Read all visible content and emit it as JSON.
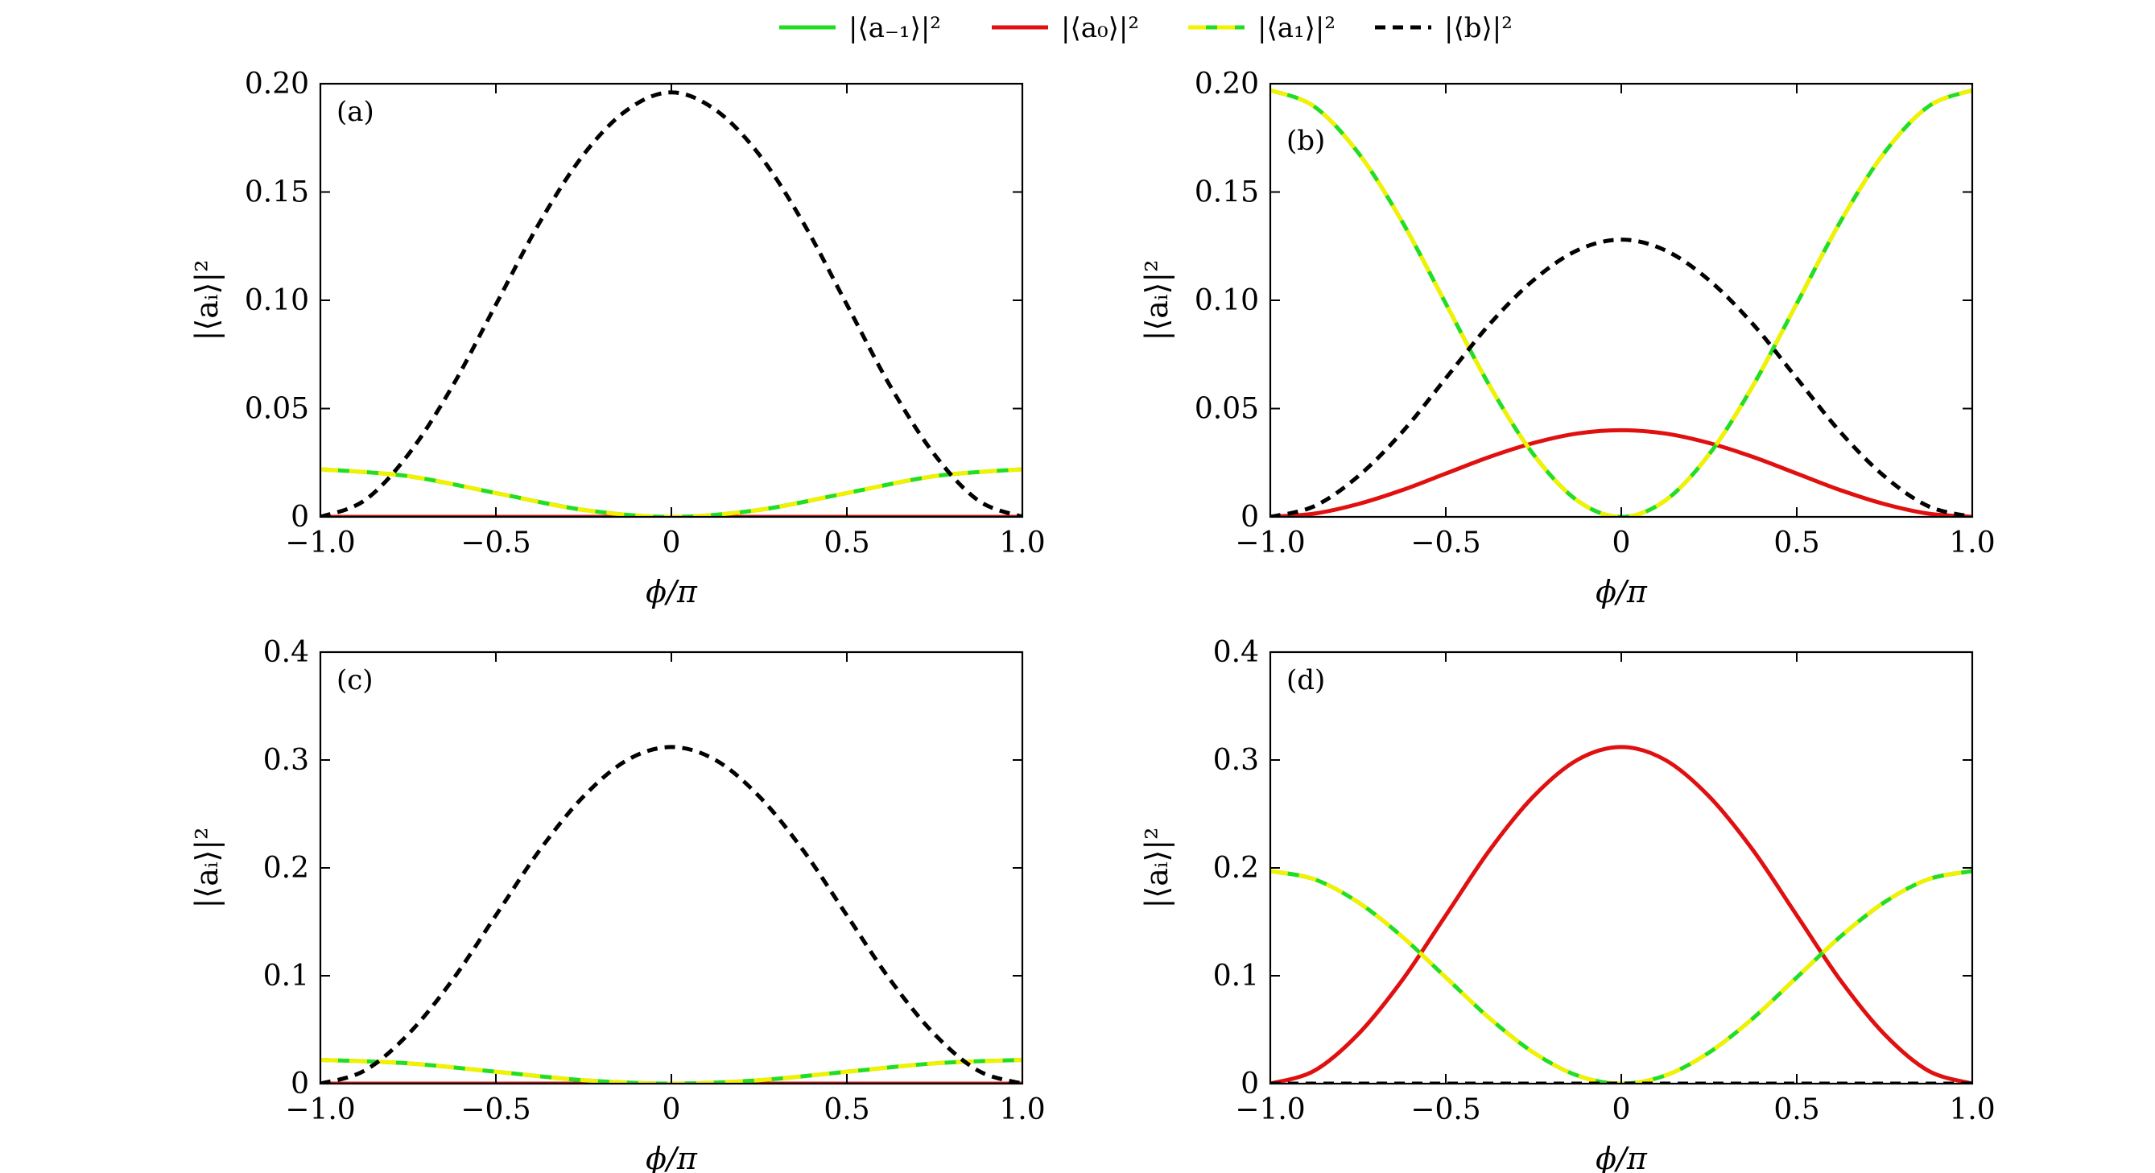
{
  "legend": {
    "entries": [
      {
        "key": "a_minus1",
        "label": "|⟨a₋₁⟩|²",
        "color": "#22dd22",
        "style": "solid"
      },
      {
        "key": "a0",
        "label": "|⟨a₀⟩|²",
        "color": "#e01010",
        "style": "solid"
      },
      {
        "key": "a1",
        "label": "|⟨a₁⟩|²",
        "color": "#f2f200",
        "style": "dashed"
      },
      {
        "key": "b",
        "label": "|⟨b⟩|²",
        "color": "#000000",
        "style": "dashed"
      }
    ]
  },
  "chart_data": [
    {
      "type": "line",
      "panel": "(a)",
      "xlabel": "ϕ/π",
      "ylabel": "|⟨aᵢ⟩|²",
      "xlim": [
        -1.0,
        1.0
      ],
      "ylim": [
        0,
        0.2
      ],
      "xticks": [
        -1.0,
        -0.5,
        0,
        0.5,
        1.0
      ],
      "xtick_labels": [
        "−1.0",
        "−0.5",
        "0",
        "0.5",
        "1.0"
      ],
      "yticks": [
        0,
        0.05,
        0.1,
        0.15,
        0.2
      ],
      "ytick_labels": [
        "0",
        "0.05",
        "0.10",
        "0.15",
        "0.20"
      ],
      "series": [
        {
          "name": "|⟨a₋₁⟩|²",
          "key": "a_minus1",
          "x": [
            -1.0,
            -0.75,
            -0.5,
            -0.25,
            0,
            0.25,
            0.5,
            0.75,
            1.0
          ],
          "values": [
            0.022,
            0.0188,
            0.011,
            0.0032,
            0,
            0.0032,
            0.011,
            0.0188,
            0.022
          ]
        },
        {
          "name": "|⟨a₀⟩|²",
          "key": "a0",
          "x": [
            -1.0,
            -0.5,
            0,
            0.5,
            1.0
          ],
          "values": [
            0,
            0,
            0,
            0,
            0
          ]
        },
        {
          "name": "|⟨a₁⟩|²",
          "key": "a1",
          "x": [
            -1.0,
            -0.75,
            -0.5,
            -0.25,
            0,
            0.25,
            0.5,
            0.75,
            1.0
          ],
          "values": [
            0.022,
            0.0188,
            0.011,
            0.0032,
            0,
            0.0032,
            0.011,
            0.0188,
            0.022
          ]
        },
        {
          "name": "|⟨b⟩|²",
          "key": "b",
          "x": [
            -1.0,
            -0.875,
            -0.75,
            -0.625,
            -0.5,
            -0.375,
            -0.25,
            -0.125,
            0,
            0.125,
            0.25,
            0.375,
            0.5,
            0.625,
            0.75,
            0.875,
            1.0
          ],
          "values": [
            0,
            0.0075,
            0.0287,
            0.06,
            0.098,
            0.136,
            0.1673,
            0.188,
            0.196,
            0.188,
            0.1673,
            0.136,
            0.098,
            0.06,
            0.0287,
            0.0075,
            0
          ]
        }
      ]
    },
    {
      "type": "line",
      "panel": "(b)",
      "xlabel": "ϕ/π",
      "ylabel": "|⟨aᵢ⟩|²",
      "xlim": [
        -1.0,
        1.0
      ],
      "ylim": [
        0,
        0.2
      ],
      "xticks": [
        -1.0,
        -0.5,
        0,
        0.5,
        1.0
      ],
      "xtick_labels": [
        "−1.0",
        "−0.5",
        "0",
        "0.5",
        "1.0"
      ],
      "yticks": [
        0,
        0.05,
        0.1,
        0.15,
        0.2
      ],
      "ytick_labels": [
        "0",
        "0.05",
        "0.10",
        "0.15",
        "0.20"
      ],
      "series": [
        {
          "name": "|⟨a₋₁⟩|²",
          "key": "a_minus1",
          "x": [
            -1.0,
            -0.875,
            -0.75,
            -0.625,
            -0.5,
            -0.375,
            -0.25,
            -0.125,
            0,
            0.125,
            0.25,
            0.375,
            0.5,
            0.625,
            0.75,
            0.875,
            1.0
          ],
          "values": [
            0.197,
            0.1895,
            0.1682,
            0.1365,
            0.0985,
            0.0605,
            0.0288,
            0.0075,
            0,
            0.0075,
            0.0288,
            0.0605,
            0.0985,
            0.1365,
            0.1682,
            0.1895,
            0.197
          ]
        },
        {
          "name": "|⟨a₀⟩|²",
          "key": "a0",
          "x": [
            -1.0,
            -0.875,
            -0.75,
            -0.625,
            -0.5,
            -0.375,
            -0.25,
            -0.125,
            0,
            0.125,
            0.25,
            0.375,
            0.5,
            0.625,
            0.75,
            0.875,
            1.0
          ],
          "values": [
            0,
            0.0015,
            0.0059,
            0.0123,
            0.02,
            0.0277,
            0.0341,
            0.0385,
            0.04,
            0.0385,
            0.0341,
            0.0277,
            0.02,
            0.0123,
            0.0059,
            0.0015,
            0
          ]
        },
        {
          "name": "|⟨a₁⟩|²",
          "key": "a1",
          "x": [
            -1.0,
            -0.875,
            -0.75,
            -0.625,
            -0.5,
            -0.375,
            -0.25,
            -0.125,
            0,
            0.125,
            0.25,
            0.375,
            0.5,
            0.625,
            0.75,
            0.875,
            1.0
          ],
          "values": [
            0.197,
            0.1895,
            0.1682,
            0.1365,
            0.0985,
            0.0605,
            0.0288,
            0.0075,
            0,
            0.0075,
            0.0288,
            0.0605,
            0.0985,
            0.1365,
            0.1682,
            0.1895,
            0.197
          ]
        },
        {
          "name": "|⟨b⟩|²",
          "key": "b",
          "x": [
            -1.0,
            -0.875,
            -0.75,
            -0.625,
            -0.5,
            -0.375,
            -0.25,
            -0.125,
            0,
            0.125,
            0.25,
            0.375,
            0.5,
            0.625,
            0.75,
            0.875,
            1.0
          ],
          "values": [
            0,
            0.0049,
            0.0187,
            0.039,
            0.064,
            0.089,
            0.1093,
            0.1231,
            0.128,
            0.1231,
            0.1093,
            0.089,
            0.064,
            0.039,
            0.0187,
            0.0049,
            0
          ]
        }
      ]
    },
    {
      "type": "line",
      "panel": "(c)",
      "xlabel": "ϕ/π",
      "ylabel": "|⟨aᵢ⟩|²",
      "xlim": [
        -1.0,
        1.0
      ],
      "ylim": [
        0,
        0.4
      ],
      "xticks": [
        -1.0,
        -0.5,
        0,
        0.5,
        1.0
      ],
      "xtick_labels": [
        "−1.0",
        "−0.5",
        "0",
        "0.5",
        "1.0"
      ],
      "yticks": [
        0,
        0.1,
        0.2,
        0.3,
        0.4
      ],
      "ytick_labels": [
        "0",
        "0.1",
        "0.2",
        "0.3",
        "0.4"
      ],
      "series": [
        {
          "name": "|⟨a₋₁⟩|²",
          "key": "a_minus1",
          "x": [
            -1.0,
            -0.75,
            -0.5,
            -0.25,
            0,
            0.25,
            0.5,
            0.75,
            1.0
          ],
          "values": [
            0.022,
            0.0188,
            0.011,
            0.0032,
            0,
            0.0032,
            0.011,
            0.0188,
            0.022
          ]
        },
        {
          "name": "|⟨a₀⟩|²",
          "key": "a0",
          "x": [
            -1.0,
            -0.5,
            0,
            0.5,
            1.0
          ],
          "values": [
            0,
            0,
            0,
            0,
            0
          ]
        },
        {
          "name": "|⟨a₁⟩|²",
          "key": "a1",
          "x": [
            -1.0,
            -0.75,
            -0.5,
            -0.25,
            0,
            0.25,
            0.5,
            0.75,
            1.0
          ],
          "values": [
            0.022,
            0.0188,
            0.011,
            0.0032,
            0,
            0.0032,
            0.011,
            0.0188,
            0.022
          ]
        },
        {
          "name": "|⟨b⟩|²",
          "key": "b",
          "x": [
            -1.0,
            -0.875,
            -0.75,
            -0.625,
            -0.5,
            -0.375,
            -0.25,
            -0.125,
            0,
            0.125,
            0.25,
            0.375,
            0.5,
            0.625,
            0.75,
            0.875,
            1.0
          ],
          "values": [
            0,
            0.0119,
            0.0457,
            0.0955,
            0.156,
            0.2165,
            0.2663,
            0.3001,
            0.312,
            0.3001,
            0.2663,
            0.2165,
            0.156,
            0.0955,
            0.0457,
            0.0119,
            0
          ]
        }
      ]
    },
    {
      "type": "line",
      "panel": "(d)",
      "xlabel": "ϕ/π",
      "ylabel": "|⟨aᵢ⟩|²",
      "xlim": [
        -1.0,
        1.0
      ],
      "ylim": [
        0,
        0.4
      ],
      "xticks": [
        -1.0,
        -0.5,
        0,
        0.5,
        1.0
      ],
      "xtick_labels": [
        "−1.0",
        "−0.5",
        "0",
        "0.5",
        "1.0"
      ],
      "yticks": [
        0,
        0.1,
        0.2,
        0.3,
        0.4
      ],
      "ytick_labels": [
        "0",
        "0.1",
        "0.2",
        "0.3",
        "0.4"
      ],
      "series": [
        {
          "name": "|⟨a₋₁⟩|²",
          "key": "a_minus1",
          "x": [
            -1.0,
            -0.875,
            -0.75,
            -0.625,
            -0.5,
            -0.375,
            -0.25,
            -0.125,
            0,
            0.125,
            0.25,
            0.375,
            0.5,
            0.625,
            0.75,
            0.875,
            1.0
          ],
          "values": [
            0.197,
            0.1895,
            0.1682,
            0.1365,
            0.0985,
            0.0605,
            0.0288,
            0.0075,
            0,
            0.0075,
            0.0288,
            0.0605,
            0.0985,
            0.1365,
            0.1682,
            0.1895,
            0.197
          ]
        },
        {
          "name": "|⟨a₀⟩|²",
          "key": "a0",
          "x": [
            -1.0,
            -0.875,
            -0.75,
            -0.625,
            -0.5,
            -0.375,
            -0.25,
            -0.125,
            0,
            0.125,
            0.25,
            0.375,
            0.5,
            0.625,
            0.75,
            0.875,
            1.0
          ],
          "values": [
            0,
            0.0119,
            0.0457,
            0.0955,
            0.156,
            0.2165,
            0.2663,
            0.3001,
            0.312,
            0.3001,
            0.2663,
            0.2165,
            0.156,
            0.0955,
            0.0457,
            0.0119,
            0
          ]
        },
        {
          "name": "|⟨a₁⟩|²",
          "key": "a1",
          "x": [
            -1.0,
            -0.875,
            -0.75,
            -0.625,
            -0.5,
            -0.375,
            -0.25,
            -0.125,
            0,
            0.125,
            0.25,
            0.375,
            0.5,
            0.625,
            0.75,
            0.875,
            1.0
          ],
          "values": [
            0.197,
            0.1895,
            0.1682,
            0.1365,
            0.0985,
            0.0605,
            0.0288,
            0.0075,
            0,
            0.0075,
            0.0288,
            0.0605,
            0.0985,
            0.1365,
            0.1682,
            0.1895,
            0.197
          ]
        },
        {
          "name": "|⟨b⟩|²",
          "key": "b",
          "x": [
            -1.0,
            -0.5,
            0,
            0.5,
            1.0
          ],
          "values": [
            0,
            0,
            0,
            0,
            0
          ]
        }
      ]
    }
  ]
}
